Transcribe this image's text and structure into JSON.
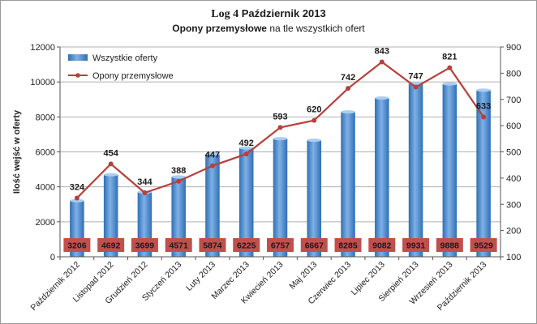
{
  "title": {
    "log_label": "Log 4",
    "month_label": " Październik 2013"
  },
  "subtitle": {
    "bold_part": "Opony przemysłowe",
    "rest": " na tle wszystkich ofert"
  },
  "colors": {
    "bar_light": "#7fb0e6",
    "bar_dark": "#2f6fb5",
    "line": "#b7403a",
    "bar_label_bg": "#c0504d",
    "grid": "#b0b0b0"
  },
  "chart_data": {
    "type": "bar",
    "categories": [
      "Październik 2012",
      "Listopad 2012",
      "Grudzień 2012",
      "Styczeń 2013",
      "Luty 2013",
      "Marzec 2013",
      "Kwiecień 2013",
      "Maj 2013",
      "Czerwiec 2013",
      "Lipiec 2013",
      "Sierpień 2013",
      "Wrzesień 2013",
      "Październik 2013"
    ],
    "series": [
      {
        "name": "Wszystkie oferty",
        "type": "bar",
        "axis": "left",
        "values": [
          3206,
          4692,
          3699,
          4571,
          5874,
          6225,
          6757,
          6667,
          8285,
          9082,
          9931,
          9888,
          9529
        ]
      },
      {
        "name": "Opony przemysłowe",
        "type": "line",
        "axis": "right",
        "values": [
          324,
          454,
          344,
          388,
          447,
          492,
          593,
          620,
          742,
          843,
          747,
          821,
          633
        ]
      }
    ],
    "ylabel": "Ilość wejść w oferty",
    "ylim": [
      0,
      12000
    ],
    "yticks": [
      "0",
      "2000",
      "4000",
      "6000",
      "8000",
      "10000",
      "12000"
    ],
    "y2lim": [
      100,
      900
    ],
    "y2ticks": [
      "100",
      "200",
      "300",
      "400",
      "500",
      "600",
      "700",
      "800",
      "900"
    ],
    "grid": true,
    "legend": "top-left"
  }
}
